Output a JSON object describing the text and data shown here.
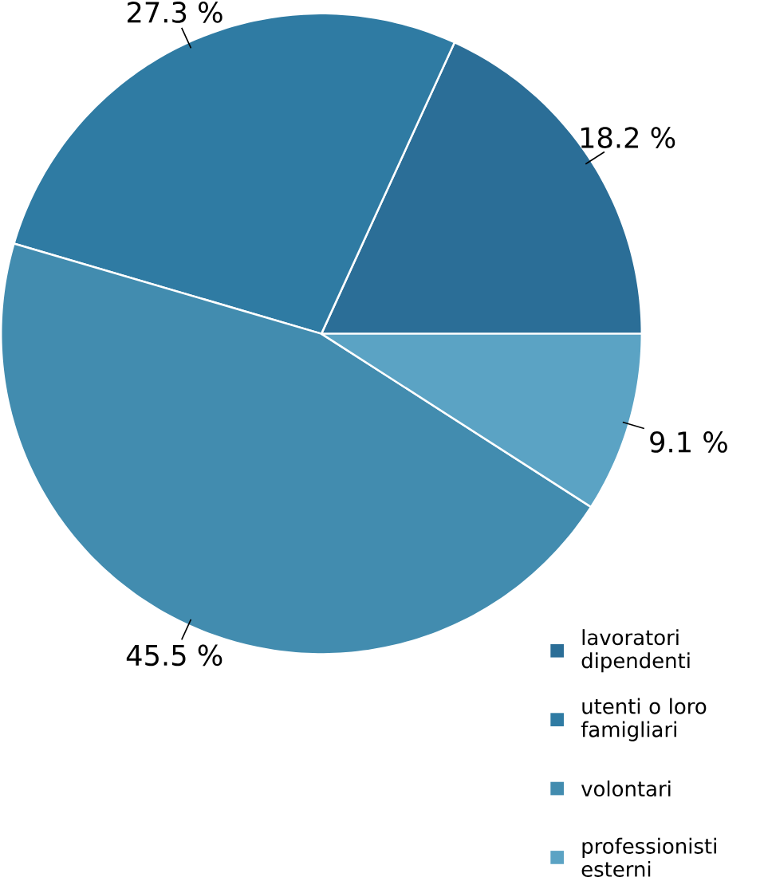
{
  "chart_data": {
    "type": "pie",
    "categories": [
      "lavoratori dipendenti",
      "utenti o loro famigliari",
      "volontari",
      "professionisti esterni"
    ],
    "values": [
      18.2,
      27.3,
      45.5,
      9.1
    ],
    "value_labels": [
      "18.2 %",
      "27.3 %",
      "45.5 %",
      "9.1 %"
    ],
    "colors": [
      "#2b6e97",
      "#2f7ba3",
      "#428caf",
      "#5ba3c4"
    ],
    "legend": "bottom right"
  }
}
